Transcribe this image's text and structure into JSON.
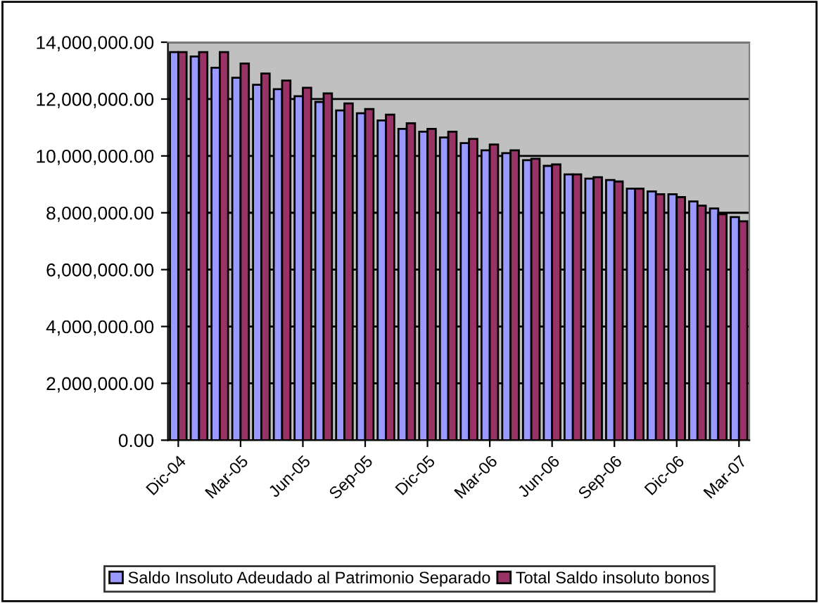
{
  "chart_data": {
    "type": "bar",
    "categories": [
      "Dic-04",
      null,
      null,
      "Mar-05",
      null,
      null,
      "Jun-05",
      null,
      null,
      "Sep-05",
      null,
      null,
      "Dic-05",
      null,
      null,
      "Mar-06",
      null,
      null,
      "Jun-06",
      null,
      null,
      "Sep-06",
      null,
      null,
      "Dic-06",
      null,
      null,
      "Mar-07"
    ],
    "series": [
      {
        "name": "Saldo Insoluto Adeudado al Patrimonio Separado",
        "color": "#9999ff",
        "values": [
          13650000,
          13500000,
          13100000,
          12750000,
          12500000,
          12350000,
          12100000,
          11900000,
          11600000,
          11500000,
          11250000,
          10950000,
          10850000,
          10650000,
          10450000,
          10200000,
          10100000,
          9850000,
          9650000,
          9350000,
          9200000,
          9150000,
          8850000,
          8750000,
          8650000,
          8400000,
          8150000,
          7850000
        ]
      },
      {
        "name": "Total Saldo insoluto bonos",
        "color": "#993366",
        "values": [
          13650000,
          13650000,
          13650000,
          13250000,
          12900000,
          12650000,
          12400000,
          12200000,
          11850000,
          11650000,
          11450000,
          11150000,
          10950000,
          10850000,
          10600000,
          10400000,
          10200000,
          9900000,
          9700000,
          9350000,
          9250000,
          9100000,
          8850000,
          8650000,
          8550000,
          8250000,
          7950000,
          7700000
        ]
      }
    ],
    "ylim": [
      0,
      14000000
    ],
    "yticks": [
      {
        "value": 0,
        "label": "0.00"
      },
      {
        "value": 2000000,
        "label": "2,000,000.00"
      },
      {
        "value": 4000000,
        "label": "4,000,000.00"
      },
      {
        "value": 6000000,
        "label": "6,000,000.00"
      },
      {
        "value": 8000000,
        "label": "8,000,000.00"
      },
      {
        "value": 10000000,
        "label": "10,000,000.00"
      },
      {
        "value": 12000000,
        "label": "12,000,000.00"
      },
      {
        "value": 14000000,
        "label": "14,000,000.00"
      }
    ],
    "grid": "y",
    "legend": "bottom"
  }
}
